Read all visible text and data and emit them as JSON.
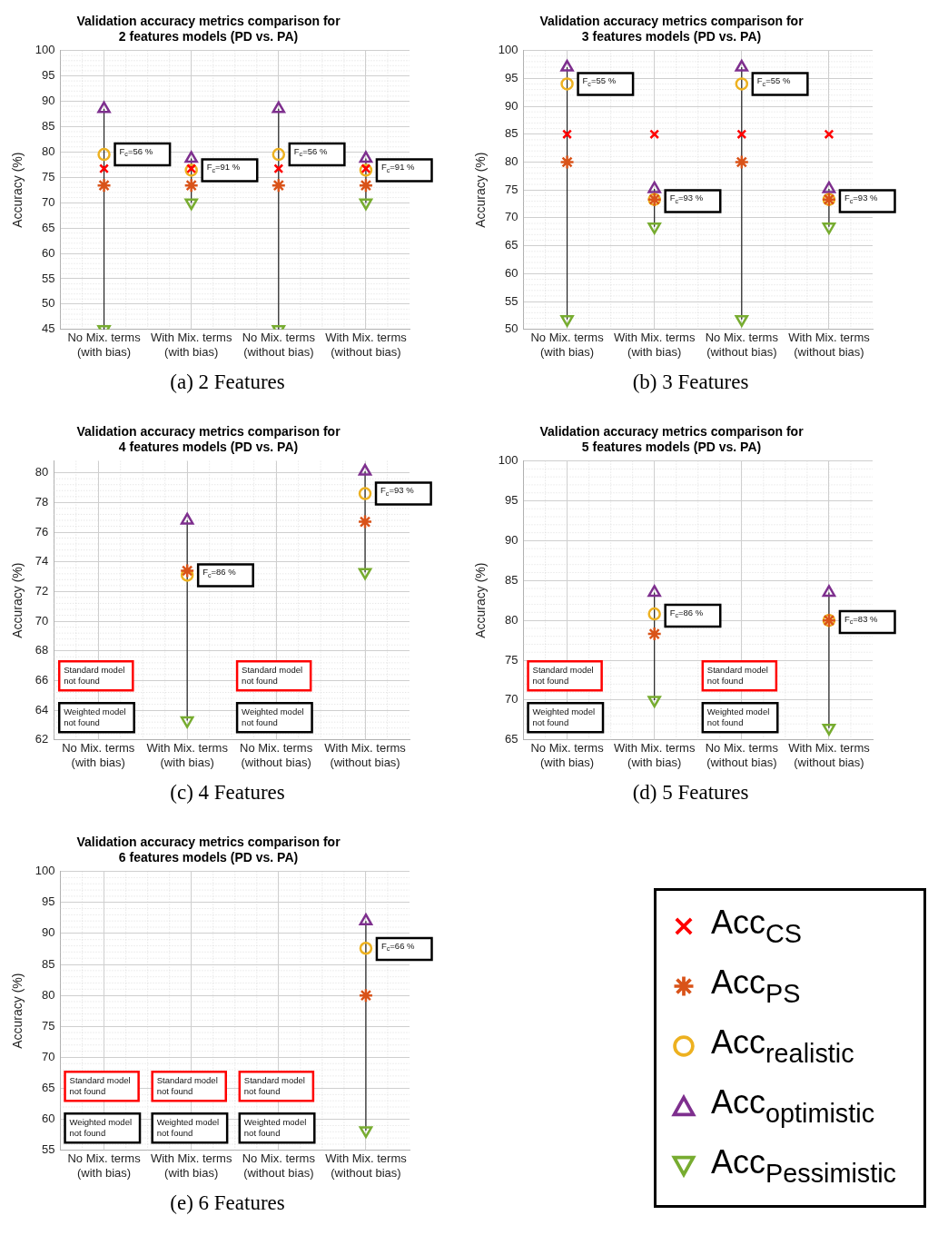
{
  "chart_data": [
    {
      "type": "scatter",
      "title": "Validation accuracy metrics comparison for\n2 features models (PD vs. PA)",
      "ylabel": "Accuracy (%)",
      "categories": [
        "No Mix. terms\n(with bias)",
        "With Mix. terms\n(with bias)",
        "No Mix. terms\n(without bias)",
        "With Mix. terms\n(without bias)"
      ],
      "ylim": [
        45,
        100
      ],
      "yticks": [
        45,
        50,
        55,
        60,
        65,
        70,
        75,
        80,
        85,
        90,
        95,
        100
      ],
      "grid": true,
      "series": [
        {
          "color": "#ff0000",
          "marker": "cross",
          "values": [
            76.7,
            76.7,
            76.7,
            76.7
          ]
        },
        {
          "color": "#d95319",
          "values": [
            73.4,
            73.4,
            73.4,
            73.4
          ]
        },
        {
          "color": "#edb120",
          "marker": "circle",
          "values": [
            79.5,
            76.4,
            79.5,
            76.4
          ]
        },
        {
          "color": "#7e2f8e",
          "marker": "triangle",
          "values": [
            88.5,
            78.7,
            88.5,
            78.7
          ]
        },
        {
          "color": "#77ac30",
          "marker": "triangle-down",
          "values": [
            45,
            70,
            45,
            70
          ]
        }
      ],
      "annotations": [
        {
          "text": "F$_{c}$=56 %",
          "x": "No Mix. terms\n(with bias)",
          "y": 79.5
        },
        {
          "text": "F$_{c}$=91 %",
          "x": "With Mix. terms\n(with bias)",
          "y": 76.4
        },
        {
          "text": "F$_{c}$=56 %",
          "x": "No Mix. terms\n(without bias)",
          "y": 79.5
        },
        {
          "text": "F$_{c}$=91 %",
          "x": "With Mix. terms\n(without bias)",
          "y": 76.4
        },
        "(a) 2 Features"
      ]
    },
    {
      "type": "scatter",
      "title": "Validation accuracy metrics comparison for\n3 features models (PD vs. PA)",
      "ylabel": "Accuracy (%)",
      "categories": [
        "No Mix. terms\n(with bias)",
        "With Mix. terms\n(with bias)",
        "No Mix. terms\n(without bias)",
        "With Mix. terms\n(without bias)"
      ],
      "ylim": [
        50,
        100
      ],
      "yticks": [
        50,
        55,
        60,
        65,
        70,
        75,
        80,
        85,
        90,
        95,
        100
      ],
      "grid": true,
      "series": [
        {
          "color": "#ff0000",
          "marker": "cross",
          "values": [
            85,
            85,
            85,
            85
          ]
        },
        {
          "color": "#d95319",
          "values": [
            80,
            73.3,
            80,
            73.3
          ]
        },
        {
          "color": "#edb120",
          "marker": "circle",
          "values": [
            94,
            73.3,
            94,
            73.3
          ]
        },
        {
          "color": "#7e2f8e",
          "marker": "triangle",
          "values": [
            97,
            75.2,
            97,
            75.2
          ]
        },
        {
          "color": "#77ac30",
          "marker": "triangle-down",
          "values": [
            51.8,
            68.4,
            51.8,
            68.4
          ]
        }
      ],
      "annotations": [
        {
          "text": "F$_{c}$=55 %",
          "x": "No Mix. terms\n(with bias)",
          "y": 94
        },
        {
          "text": "F$_{c}$=93 %",
          "x": "With Mix. terms\n(with bias)",
          "y": 73
        },
        {
          "text": "F$_{c}$=55 %",
          "x": "No Mix. terms\n(without bias)",
          "y": 94
        },
        {
          "text": "F$_{c}$=93 %",
          "x": "With Mix. terms\n(without bias)",
          "y": 73
        },
        "(b) 3 Features"
      ]
    },
    {
      "type": "scatter",
      "title": "Validation accuracy metrics comparison for\n4 features models (PD vs. PA)",
      "ylabel": "Accuracy (%)",
      "categories": [
        "No Mix. terms\n(with bias)",
        "With Mix. terms\n(with bias)",
        "No Mix. terms\n(without bias)",
        "With Mix. terms\n(without bias)"
      ],
      "ylim": [
        62,
        80.8
      ],
      "yticks": [
        62,
        64,
        66,
        68,
        70,
        72,
        74,
        76,
        78,
        80
      ],
      "grid": true,
      "series": [
        {
          "color": "#ff0000",
          "marker": "cross",
          "values": [
            null,
            null,
            null,
            null
          ]
        },
        {
          "color": "#d95319",
          "values": [
            null,
            73.4,
            null,
            76.7
          ]
        },
        {
          "color": "#edb120",
          "marker": "circle",
          "values": [
            null,
            73.1,
            null,
            78.6
          ]
        },
        {
          "color": "#7e2f8e",
          "marker": "triangle",
          "values": [
            null,
            76.8,
            null,
            80.1
          ]
        },
        {
          "color": "#77ac30",
          "marker": "triangle-down",
          "values": [
            null,
            63.3,
            null,
            73.3
          ]
        }
      ],
      "annotations": [
        {
          "text": "F$_{c}$=86 %",
          "x": "With Mix. terms\n(with bias)",
          "y": 73.1
        },
        {
          "text": "F$_{c}$=93 %",
          "x": "With Mix. terms\n(without bias)",
          "y": 78.6
        },
        "Standard model\nnot found",
        "Weighted model\nnot found",
        "Standard model\nnot found",
        "Weighted model\nnot found",
        "(c) 4 Features"
      ]
    },
    {
      "type": "scatter",
      "title": "Validation accuracy metrics comparison for\n5 features models (PD vs. PA)",
      "ylabel": "Accuracy (%)",
      "categories": [
        "No Mix. terms\n(with bias)",
        "With Mix. terms\n(with bias)",
        "No Mix. terms\n(without bias)",
        "With Mix. terms\n(without bias)"
      ],
      "ylim": [
        65,
        100
      ],
      "yticks": [
        65,
        70,
        75,
        80,
        85,
        90,
        95,
        100
      ],
      "grid": true,
      "series": [
        {
          "color": "#ff0000",
          "marker": "cross",
          "values": [
            null,
            null,
            null,
            null
          ]
        },
        {
          "color": "#d95319",
          "values": [
            null,
            78.3,
            null,
            80
          ]
        },
        {
          "color": "#edb120",
          "marker": "circle",
          "values": [
            null,
            80.8,
            null,
            80
          ]
        },
        {
          "color": "#7e2f8e",
          "marker": "triangle",
          "values": [
            null,
            83.5,
            null,
            83.5
          ]
        },
        {
          "color": "#77ac30",
          "marker": "triangle-down",
          "values": [
            null,
            70,
            null,
            66.5
          ]
        }
      ],
      "annotations": [
        {
          "text": "F$_{c}$=86 %",
          "x": "With Mix. terms\n(with bias)",
          "y": 80.6
        },
        {
          "text": "F$_{c}$=83 %",
          "x": "With Mix. terms\n(without bias)",
          "y": 79.8
        },
        "Standard model\nnot found",
        "Weighted model\nnot found",
        "Standard model\nnot found",
        "Weighted model\nnot found",
        "(d) 5 Features"
      ]
    },
    {
      "type": "scatter",
      "title": "Validation accuracy metrics comparison for\n6 features models (PD vs. PA)",
      "ylabel": "Accuracy (%)",
      "categories": [
        "No Mix. terms\n(with bias)",
        "With Mix. terms\n(with bias)",
        "No Mix. terms\n(without bias)",
        "With Mix. terms\n(without bias)"
      ],
      "ylim": [
        55,
        100
      ],
      "yticks": [
        55,
        60,
        65,
        70,
        75,
        80,
        85,
        90,
        95,
        100
      ],
      "grid": true,
      "legend": "right",
      "series": [
        {
          "name": "Acc$_{CS}$",
          "color": "#ff0000",
          "marker": "cross",
          "values": [
            null,
            null,
            null,
            null
          ]
        },
        {
          "name": "Acc$_{PS}$",
          "color": "#d95319",
          "values": [
            null,
            null,
            null,
            80
          ]
        },
        {
          "name": "Acc$_{realistic}$",
          "color": "#edb120",
          "marker": "circle",
          "values": [
            null,
            null,
            null,
            87.6
          ]
        },
        {
          "name": "Acc$_{optimistic}$",
          "color": "#7e2f8e",
          "marker": "triangle",
          "values": [
            null,
            null,
            null,
            92
          ]
        },
        {
          "name": "Acc$_{Pessimistic}$",
          "color": "#77ac30",
          "marker": "triangle-down",
          "values": [
            null,
            null,
            null,
            58.2
          ]
        }
      ],
      "annotations": [
        {
          "text": "F$_{c}$=66 %",
          "x": "With Mix. terms\n(without bias)",
          "y": 87.5
        },
        "Standard model\nnot found",
        "Weighted model\nnot found",
        "Standard model\nnot found",
        "Weighted model\nnot found",
        "Standard model\nnot found",
        "Weighted model\nnot found",
        "(e) 6 Features"
      ]
    }
  ]
}
